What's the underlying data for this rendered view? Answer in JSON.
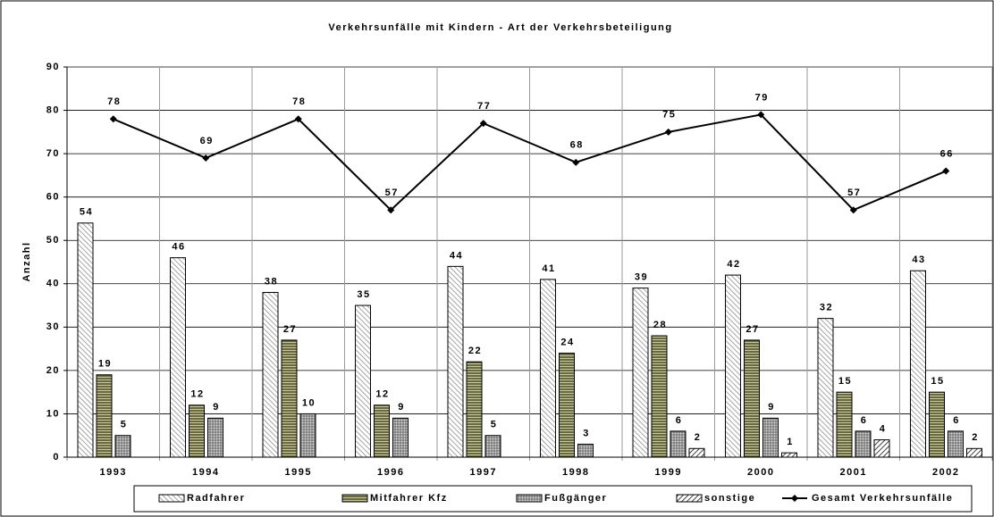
{
  "chart_data": {
    "type": "bar",
    "title": "Verkehrsunfälle mit Kindern - Art der Verkehrsbeteiligung",
    "y_label": "Anzahl",
    "categories": [
      "1993",
      "1994",
      "1995",
      "1996",
      "1997",
      "1998",
      "1999",
      "2000",
      "2001",
      "2002"
    ],
    "series": [
      {
        "name": "Radfahrer",
        "color": "#d9d9d9",
        "pattern": "diagonal-fine",
        "values": [
          54,
          46,
          38,
          35,
          44,
          41,
          39,
          42,
          32,
          43
        ]
      },
      {
        "name": "Mitfahrer Kfz",
        "color": "#6b6b3a",
        "pattern": "horizontal",
        "values": [
          19,
          12,
          27,
          12,
          22,
          24,
          28,
          27,
          15,
          15
        ]
      },
      {
        "name": "Fußgänger",
        "color": "#8c8c8c",
        "pattern": "grid",
        "values": [
          5,
          9,
          10,
          9,
          5,
          3,
          6,
          9,
          6,
          6
        ]
      },
      {
        "name": "sonstige",
        "color": "#666666",
        "pattern": "diagonal",
        "values": [
          null,
          null,
          null,
          null,
          null,
          null,
          2,
          1,
          4,
          2
        ]
      },
      {
        "name": "Gesamt Verkehrsunfälle",
        "color": "#000000",
        "type": "line",
        "values": [
          78,
          69,
          78,
          57,
          77,
          68,
          75,
          79,
          57,
          66
        ]
      }
    ],
    "ylim": [
      0,
      90
    ],
    "yticks": [
      0,
      10,
      20,
      30,
      40,
      50,
      60,
      70,
      80,
      90
    ],
    "grid": true,
    "legend": "bottom"
  }
}
